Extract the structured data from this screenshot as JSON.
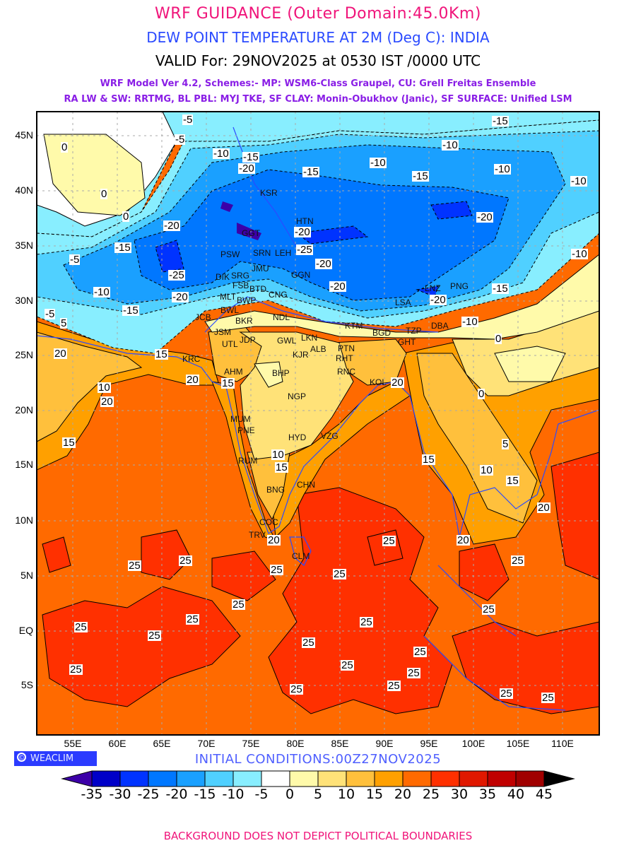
{
  "header": {
    "title": "WRF GUIDANCE (Outer Domain:45.0Km)",
    "subtitle": "DEW POINT TEMPERATURE AT 2M (Deg C): INDIA",
    "valid": "VALID For: 29NOV2025 at 0530 IST /0000 UTC",
    "model_line1": "WRF Model Ver 4.2, Schemes:- MP: WSM6-Class Graupel, CU: Grell Freitas Ensemble",
    "model_line2": "RA LW & SW: RRTMG, BL PBL: MYJ TKE, SF CLAY: Monin-Obukhov (Janic), SF SURFACE: Unified LSM"
  },
  "map": {
    "lat_ticks": [
      "45N",
      "40N",
      "35N",
      "30N",
      "25N",
      "20N",
      "15N",
      "10N",
      "5N",
      "EQ",
      "5S"
    ],
    "lon_ticks": [
      "55E",
      "60E",
      "65E",
      "70E",
      "75E",
      "80E",
      "85E",
      "90E",
      "95E",
      "100E",
      "105E",
      "110E"
    ],
    "cities": [
      "KSR",
      "HTN",
      "GGT",
      "PSW",
      "SRN",
      "LEH",
      "DIK",
      "SRG",
      "FSB",
      "JMU",
      "GGN",
      "MLT",
      "BWP",
      "BTD",
      "CNG",
      "BWL",
      "LSA",
      "LNZ",
      "PNG",
      "JCB",
      "BKR",
      "NDL",
      "KTM",
      "BGD",
      "TZP",
      "DBA",
      "JSM",
      "JDP",
      "UTL",
      "GWL",
      "LKN",
      "ALB",
      "PTN",
      "KJR",
      "RHT",
      "GHT",
      "KRC",
      "AHM",
      "BHP",
      "RNC",
      "KOL",
      "NGP",
      "MUM",
      "PNE",
      "HYD",
      "VZG",
      "RUM",
      "BNG",
      "CHN",
      "COC",
      "TRV",
      "CLM"
    ],
    "contour_labels": [
      "-15",
      "-10",
      "-10",
      "-10",
      "-10",
      "-15",
      "-15",
      "-10",
      "-15",
      "-20",
      "-20",
      "-15",
      "-20",
      "-20",
      "-25",
      "-20",
      "-20",
      "-25",
      "-20",
      "-10",
      "-15",
      "-10",
      "-15",
      "-20",
      "-10",
      "-5",
      "-5",
      "0",
      "0",
      "5",
      "20",
      "15",
      "20",
      "15",
      "20",
      "10",
      "20",
      "15",
      "10",
      "15",
      "15",
      "10",
      "15",
      "20",
      "20",
      "20",
      "25",
      "25",
      "25",
      "25",
      "25",
      "25",
      "25",
      "25",
      "25",
      "25",
      "25",
      "25",
      "25",
      "25",
      "25",
      "25",
      "25",
      "25",
      "25",
      "25",
      "25",
      "5",
      "0",
      "0",
      "-5",
      "-5",
      "0"
    ]
  },
  "footer": {
    "brand": "WEACLIM",
    "brand_symbol": "©",
    "initial_conditions": "INITIAL CONDITIONS:00Z27NOV2025",
    "disclaimer": "BACKGROUND DOES NOT DEPICT POLITICAL BOUNDARIES"
  },
  "colorbar": {
    "labels": [
      "-35",
      "-30",
      "-25",
      "-20",
      "-15",
      "-10",
      "-5",
      "0",
      "5",
      "10",
      "15",
      "20",
      "25",
      "30",
      "35",
      "40",
      "45"
    ],
    "under_color": "#3c00a8",
    "over_color": "#000000",
    "colors": [
      "#0000c8",
      "#0033ff",
      "#0077ff",
      "#1aa0ff",
      "#50d0ff",
      "#88eeff",
      "#ffffff",
      "#fffaaa",
      "#ffe278",
      "#ffc03c",
      "#ffa000",
      "#ff6a00",
      "#ff3000",
      "#e01800",
      "#c00000",
      "#a00000"
    ]
  }
}
